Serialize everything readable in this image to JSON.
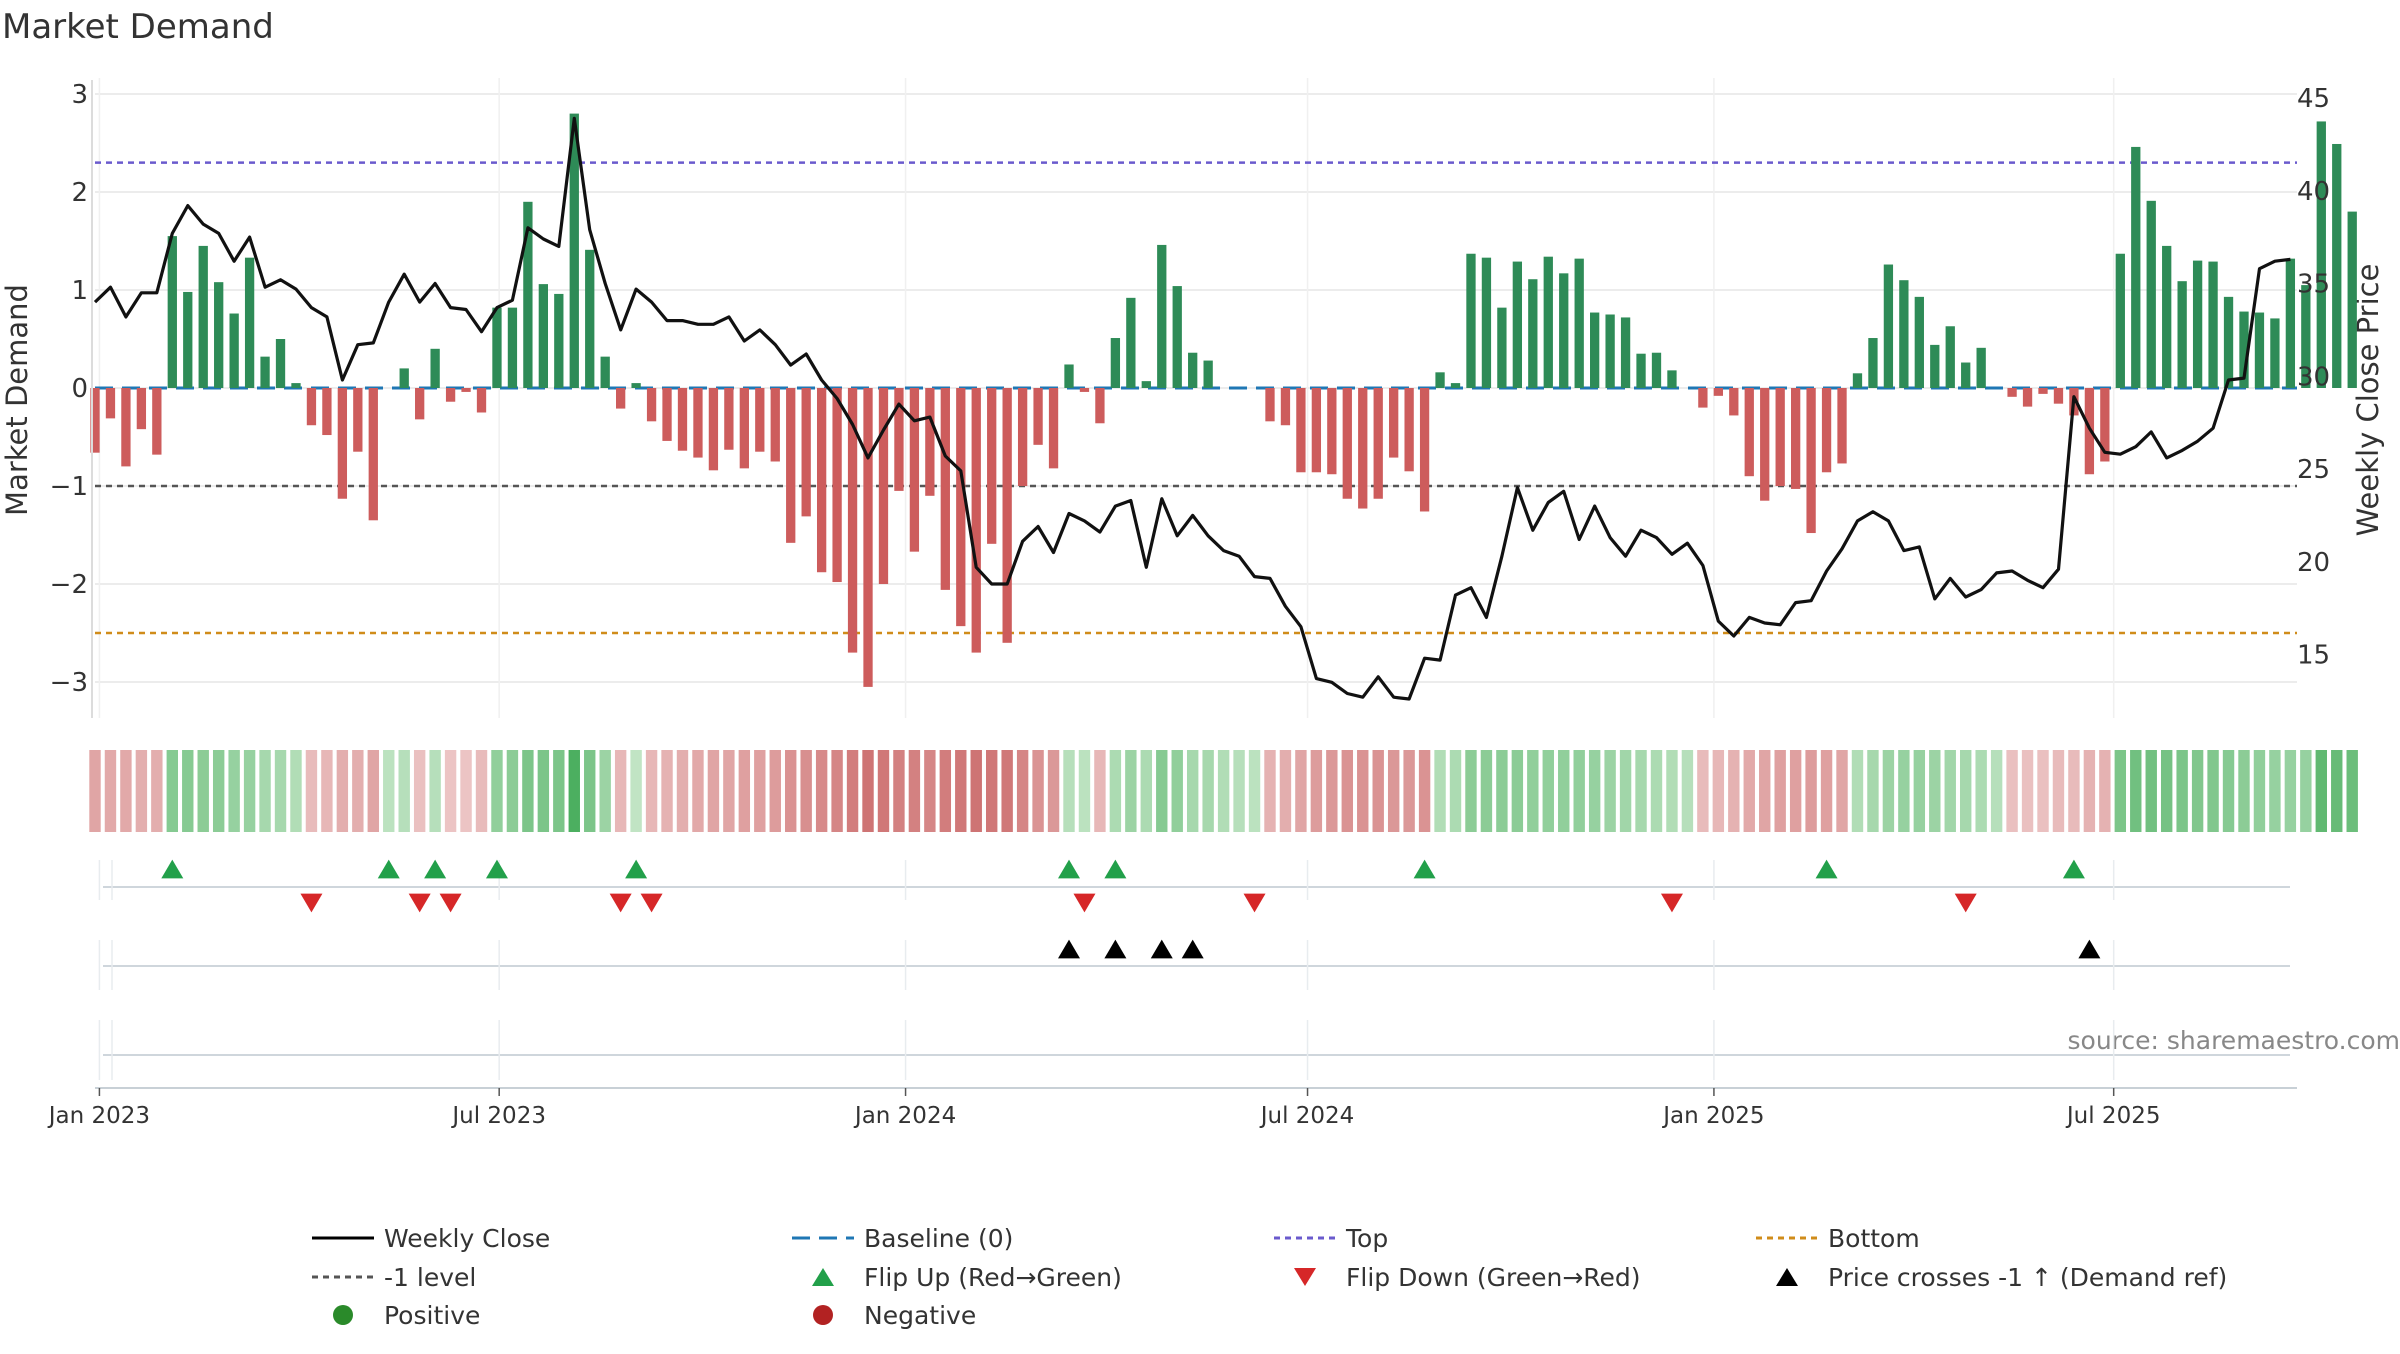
{
  "chart_data": {
    "type": "bar",
    "title": "Market Demand",
    "ylabel": "Market Demand",
    "y2label": "Weekly Close Price",
    "ylim": [
      -3.3,
      3.0
    ],
    "y2lim": [
      12.5,
      45
    ],
    "yticks": [
      3,
      2,
      1,
      0,
      -1,
      -2,
      -3
    ],
    "ytick_labels": [
      "3",
      "2",
      "1",
      "0",
      "−1",
      "−2",
      "−3"
    ],
    "y2ticks": [
      45,
      40,
      35,
      30,
      25,
      20,
      15
    ],
    "x_start": "2022-12-30",
    "x_end": "2025-09-22",
    "x_ticks": [
      {
        "date": "2023-01-01",
        "label": "Jan 2023"
      },
      {
        "date": "2023-07-01",
        "label": "Jul 2023"
      },
      {
        "date": "2024-01-01",
        "label": "Jan 2024"
      },
      {
        "date": "2024-07-01",
        "label": "Jul 2024"
      },
      {
        "date": "2025-01-01",
        "label": "Jan 2025"
      },
      {
        "date": "2025-07-01",
        "label": "Jul 2025"
      }
    ],
    "reference_lines": {
      "top": 2.3,
      "bottom": -2.5,
      "minus_one": -1,
      "baseline": 0
    },
    "first_week": "2022-12-30",
    "week_step_days": 7,
    "demand": [
      -0.66,
      -0.31,
      -0.8,
      -0.42,
      -0.68,
      1.55,
      0.98,
      1.45,
      1.08,
      0.76,
      1.33,
      0.32,
      0.5,
      0.05,
      -0.38,
      -0.48,
      -1.13,
      -0.65,
      -1.35,
      0.0,
      0.2,
      -0.32,
      0.4,
      -0.14,
      -0.04,
      -0.25,
      0.82,
      0.82,
      1.9,
      1.06,
      0.96,
      2.8,
      1.41,
      0.32,
      -0.21,
      0.05,
      -0.34,
      -0.54,
      -0.64,
      -0.71,
      -0.84,
      -0.63,
      -0.82,
      -0.65,
      -0.75,
      -1.58,
      -1.31,
      -1.88,
      -1.98,
      -2.7,
      -3.05,
      -2.0,
      -1.05,
      -1.67,
      -1.1,
      -2.06,
      -2.43,
      -2.7,
      -1.59,
      -2.6,
      -1.0,
      -0.58,
      -0.82,
      0.24,
      -0.04,
      -0.36,
      0.51,
      0.92,
      0.07,
      1.46,
      1.04,
      0.36,
      0.28,
      0.0,
      0.0,
      0.0,
      -0.34,
      -0.38,
      -0.86,
      -0.86,
      -0.88,
      -1.13,
      -1.23,
      -1.13,
      -0.71,
      -0.85,
      -1.26,
      0.16,
      0.05,
      1.37,
      1.33,
      0.82,
      1.29,
      1.11,
      1.34,
      1.17,
      1.32,
      0.77,
      0.75,
      0.72,
      0.35,
      0.36,
      0.18,
      0.0,
      -0.2,
      -0.08,
      -0.28,
      -0.9,
      -1.15,
      -1.0,
      -1.03,
      -1.48,
      -0.86,
      -0.77,
      0.15,
      0.51,
      1.26,
      1.1,
      0.93,
      0.44,
      0.63,
      0.26,
      0.41,
      0.0,
      -0.09,
      -0.19,
      -0.06,
      -0.16,
      -0.28,
      -0.88,
      -0.75,
      1.37,
      2.46,
      1.91,
      1.45,
      1.09,
      1.3,
      1.29,
      0.93,
      0.78,
      0.77,
      0.71,
      1.32,
      1.05,
      2.72,
      2.49,
      1.8
    ],
    "weekly_close": [
      34.0,
      34.8,
      33.2,
      34.5,
      34.5,
      37.7,
      39.2,
      38.2,
      37.7,
      36.2,
      37.5,
      34.8,
      35.2,
      34.7,
      33.7,
      33.2,
      29.8,
      31.7,
      31.8,
      34.0,
      35.5,
      34.0,
      35.0,
      33.7,
      33.6,
      32.4,
      33.7,
      34.1,
      38.0,
      37.4,
      37.0,
      43.9,
      37.9,
      35.0,
      32.5,
      34.7,
      34.0,
      33.0,
      33.0,
      32.8,
      32.8,
      33.2,
      31.9,
      32.5,
      31.7,
      30.6,
      31.2,
      29.8,
      28.8,
      27.4,
      25.6,
      27.1,
      28.5,
      27.6,
      27.8,
      25.7,
      24.9,
      19.7,
      18.8,
      18.8,
      21.1,
      21.9,
      20.5,
      22.6,
      22.2,
      21.6,
      23.0,
      23.3,
      19.7,
      23.4,
      21.4,
      22.5,
      21.4,
      20.6,
      20.3,
      19.2,
      19.1,
      17.6,
      16.5,
      13.7,
      13.5,
      12.9,
      12.7,
      13.8,
      12.7,
      12.6,
      14.8,
      14.7,
      18.2,
      18.6,
      17.0,
      20.3,
      24.0,
      21.7,
      23.2,
      23.8,
      21.2,
      23.0,
      21.3,
      20.3,
      21.7,
      21.3,
      20.4,
      21.0,
      19.8,
      16.8,
      16.0,
      17.0,
      16.7,
      16.6,
      17.8,
      17.9,
      19.5,
      20.7,
      22.2,
      22.7,
      22.2,
      20.6,
      20.8,
      18.0,
      19.1,
      18.1,
      18.5,
      19.4,
      19.5,
      19.0,
      18.6,
      19.6,
      28.9,
      27.2,
      25.9,
      25.8,
      26.2,
      27.0,
      25.6,
      26.0,
      26.5,
      27.2,
      29.8,
      29.9,
      35.8,
      36.2,
      36.3
    ],
    "strip_values": [
      -0.55,
      -0.5,
      -0.5,
      -0.45,
      -0.45,
      0.75,
      0.75,
      0.7,
      0.7,
      0.6,
      0.6,
      0.45,
      0.45,
      0.35,
      -0.3,
      -0.35,
      -0.45,
      -0.45,
      -0.55,
      0.25,
      0.3,
      -0.25,
      0.3,
      -0.2,
      -0.2,
      -0.3,
      0.65,
      0.7,
      0.85,
      0.85,
      0.85,
      1.3,
      0.85,
      0.55,
      -0.35,
      0.2,
      -0.35,
      -0.4,
      -0.45,
      -0.5,
      -0.55,
      -0.55,
      -0.6,
      -0.6,
      -0.65,
      -0.75,
      -0.8,
      -0.85,
      -0.9,
      -1.0,
      -1.1,
      -1.05,
      -0.95,
      -0.95,
      -0.9,
      -1.0,
      -1.05,
      -1.1,
      -1.05,
      -1.05,
      -0.9,
      -0.75,
      -0.7,
      0.3,
      0.25,
      -0.35,
      0.4,
      0.55,
      0.4,
      0.75,
      0.65,
      0.45,
      0.45,
      0.35,
      0.3,
      0.25,
      -0.4,
      -0.45,
      -0.55,
      -0.65,
      -0.7,
      -0.75,
      -0.75,
      -0.75,
      -0.7,
      -0.7,
      -0.75,
      0.35,
      0.4,
      0.7,
      0.7,
      0.7,
      0.7,
      0.65,
      0.65,
      0.65,
      0.65,
      0.6,
      0.55,
      0.5,
      0.45,
      0.4,
      0.35,
      0.3,
      -0.3,
      -0.35,
      -0.4,
      -0.5,
      -0.55,
      -0.6,
      -0.6,
      -0.65,
      -0.6,
      -0.55,
      0.35,
      0.45,
      0.55,
      0.6,
      0.6,
      0.55,
      0.5,
      0.45,
      0.4,
      0.3,
      -0.25,
      -0.25,
      -0.25,
      -0.3,
      -0.3,
      -0.4,
      -0.4,
      0.85,
      0.95,
      0.95,
      0.9,
      0.85,
      0.8,
      0.8,
      0.75,
      0.7,
      0.65,
      0.6,
      0.6,
      0.6,
      1.1,
      1.05,
      1.0
    ],
    "flip_up_weeks": [
      5,
      19,
      22,
      26,
      35,
      63,
      66,
      86,
      112,
      128
    ],
    "flip_down_weeks": [
      14,
      21,
      23,
      34,
      36,
      64,
      75,
      102,
      121
    ],
    "price_cross_weeks": [
      63,
      66,
      69,
      71,
      129
    ],
    "source_text": "source: sharemaestro.com",
    "legend": [
      {
        "label": "Weekly Close",
        "marker": "line-solid",
        "color": "#000000"
      },
      {
        "label": "Baseline (0)",
        "marker": "line-dashed",
        "color": "#1f77b4"
      },
      {
        "label": "Top",
        "marker": "line-dotted",
        "color": "#6a5acd"
      },
      {
        "label": "Bottom",
        "marker": "line-dotted",
        "color": "#d08c1a"
      },
      {
        "label": "-1 level",
        "marker": "line-dotted",
        "color": "#555555"
      },
      {
        "label": "Flip Up (Red→Green)",
        "marker": "triangle-up",
        "color": "#22a04a"
      },
      {
        "label": "Flip Down (Green→Red)",
        "marker": "triangle-down",
        "color": "#d62728"
      },
      {
        "label": "Price crosses -1 ↑ (Demand ref)",
        "marker": "triangle-up",
        "color": "#000000"
      },
      {
        "label": "Positive",
        "marker": "circle",
        "color": "#2a8a2a"
      },
      {
        "label": "Negative",
        "marker": "circle",
        "color": "#b22222"
      }
    ],
    "colors": {
      "positive_bar": "#2e8b57",
      "negative_bar": "#cd5c5c",
      "price_line": "#111111",
      "baseline": "#1f77b4",
      "top_line": "#6a5acd",
      "bottom_line": "#d08c1a",
      "minus_one_line": "#555555",
      "flip_up": "#22a04a",
      "flip_down": "#d62728",
      "price_cross": "#000000",
      "grid": "#e6e6e6"
    }
  }
}
